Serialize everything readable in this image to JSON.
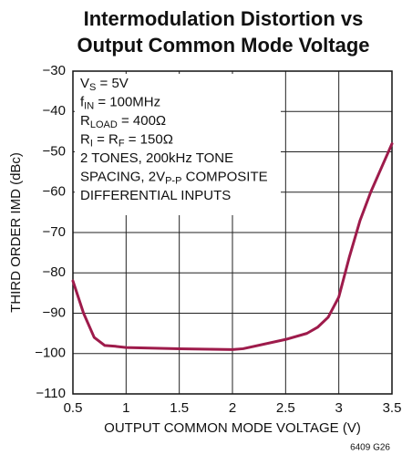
{
  "chart_data": {
    "type": "line",
    "title": [
      "Intermodulation Distortion vs",
      "Output Common Mode Voltage"
    ],
    "x_label": "OUTPUT COMMON MODE VOLTAGE (V)",
    "y_label": "THIRD ORDER IMD (dBc)",
    "figure_code": "6409 G26",
    "annotation": [
      [
        "V",
        "S",
        " = 5V"
      ],
      [
        "f",
        "IN",
        " = 100MHz"
      ],
      [
        "R",
        "LOAD",
        " = 400Ω"
      ],
      [
        "R",
        "I",
        " = R",
        "F",
        " = 150Ω"
      ],
      [
        "2 TONES, 200kHz TONE"
      ],
      [
        "SPACING, 2V",
        "P-P",
        " COMPOSITE"
      ],
      [
        "DIFFERENTIAL INPUTS"
      ]
    ],
    "x": [
      0.5,
      0.6,
      0.7,
      0.8,
      0.9,
      1.0,
      1.5,
      2.0,
      2.1,
      2.5,
      2.7,
      2.8,
      2.9,
      3.0,
      3.1,
      3.2,
      3.3,
      3.4,
      3.5
    ],
    "series": [
      {
        "color": "#9e1b4b",
        "values": [
          -82,
          -90,
          -96,
          -98,
          -98.2,
          -98.5,
          -98.8,
          -99,
          -98.8,
          -96.5,
          -95,
          -93.5,
          -91,
          -86,
          -76,
          -67,
          -60,
          -54,
          -48
        ]
      }
    ],
    "xlim": [
      0.5,
      3.5
    ],
    "ylim": [
      -110,
      -30
    ],
    "xticks": [
      0.5,
      1,
      1.5,
      2,
      2.5,
      3,
      3.5
    ],
    "yticks": [
      {
        "value": -110,
        "label": "−110"
      },
      {
        "value": -100,
        "label": "−100"
      },
      {
        "value": -90,
        "label": "−90"
      },
      {
        "value": -80,
        "label": "−80"
      },
      {
        "value": -70,
        "label": "−70"
      },
      {
        "value": -60,
        "label": "−60"
      },
      {
        "value": -50,
        "label": "−50"
      },
      {
        "value": -40,
        "label": "−40"
      },
      {
        "value": -30,
        "label": "−30"
      }
    ],
    "grid": true
  }
}
